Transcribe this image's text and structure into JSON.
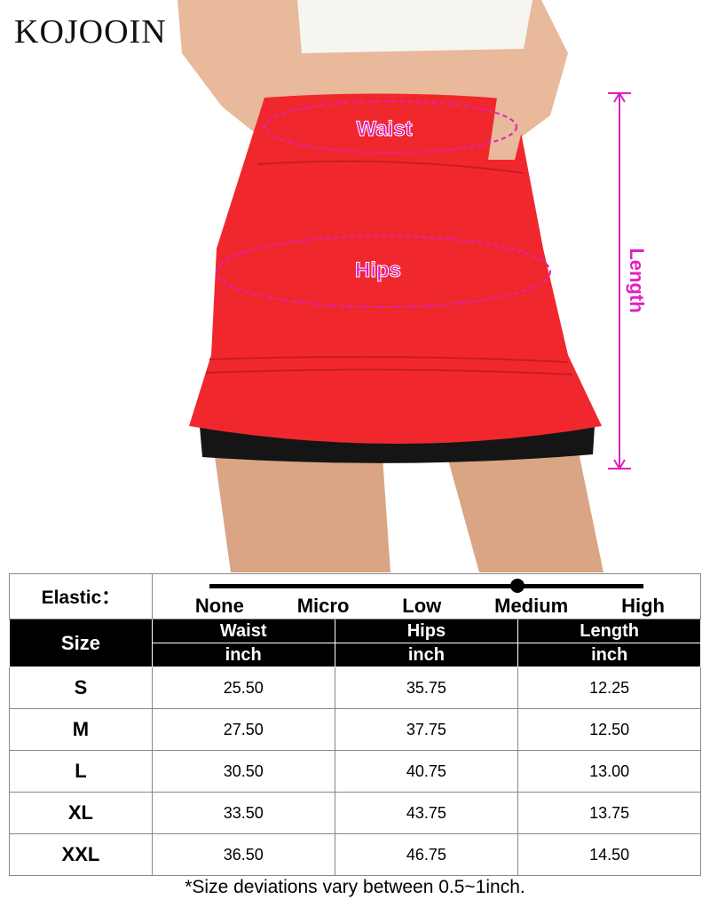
{
  "brand": "KOJOOIN",
  "annotations": {
    "waist": "Waist",
    "hips": "Hips",
    "length": "Length",
    "color": "#e020c0"
  },
  "skirt_color": "#f0282e",
  "elastic": {
    "label": "Elastic：",
    "levels": [
      "None",
      "Micro",
      "Low",
      "Medium",
      "High"
    ],
    "selected": "Medium"
  },
  "table": {
    "size_header": "Size",
    "columns": [
      {
        "name": "Waist",
        "unit": "inch"
      },
      {
        "name": "Hips",
        "unit": "inch"
      },
      {
        "name": "Length",
        "unit": "inch"
      }
    ],
    "rows": [
      {
        "size": "S",
        "values": [
          "25.50",
          "35.75",
          "12.25"
        ]
      },
      {
        "size": "M",
        "values": [
          "27.50",
          "37.75",
          "12.50"
        ]
      },
      {
        "size": "L",
        "values": [
          "30.50",
          "40.75",
          "13.00"
        ]
      },
      {
        "size": "XL",
        "values": [
          "33.50",
          "43.75",
          "13.75"
        ]
      },
      {
        "size": "XXL",
        "values": [
          "36.50",
          "46.75",
          "14.50"
        ]
      }
    ]
  },
  "note": "*Size deviations vary between 0.5~1inch."
}
